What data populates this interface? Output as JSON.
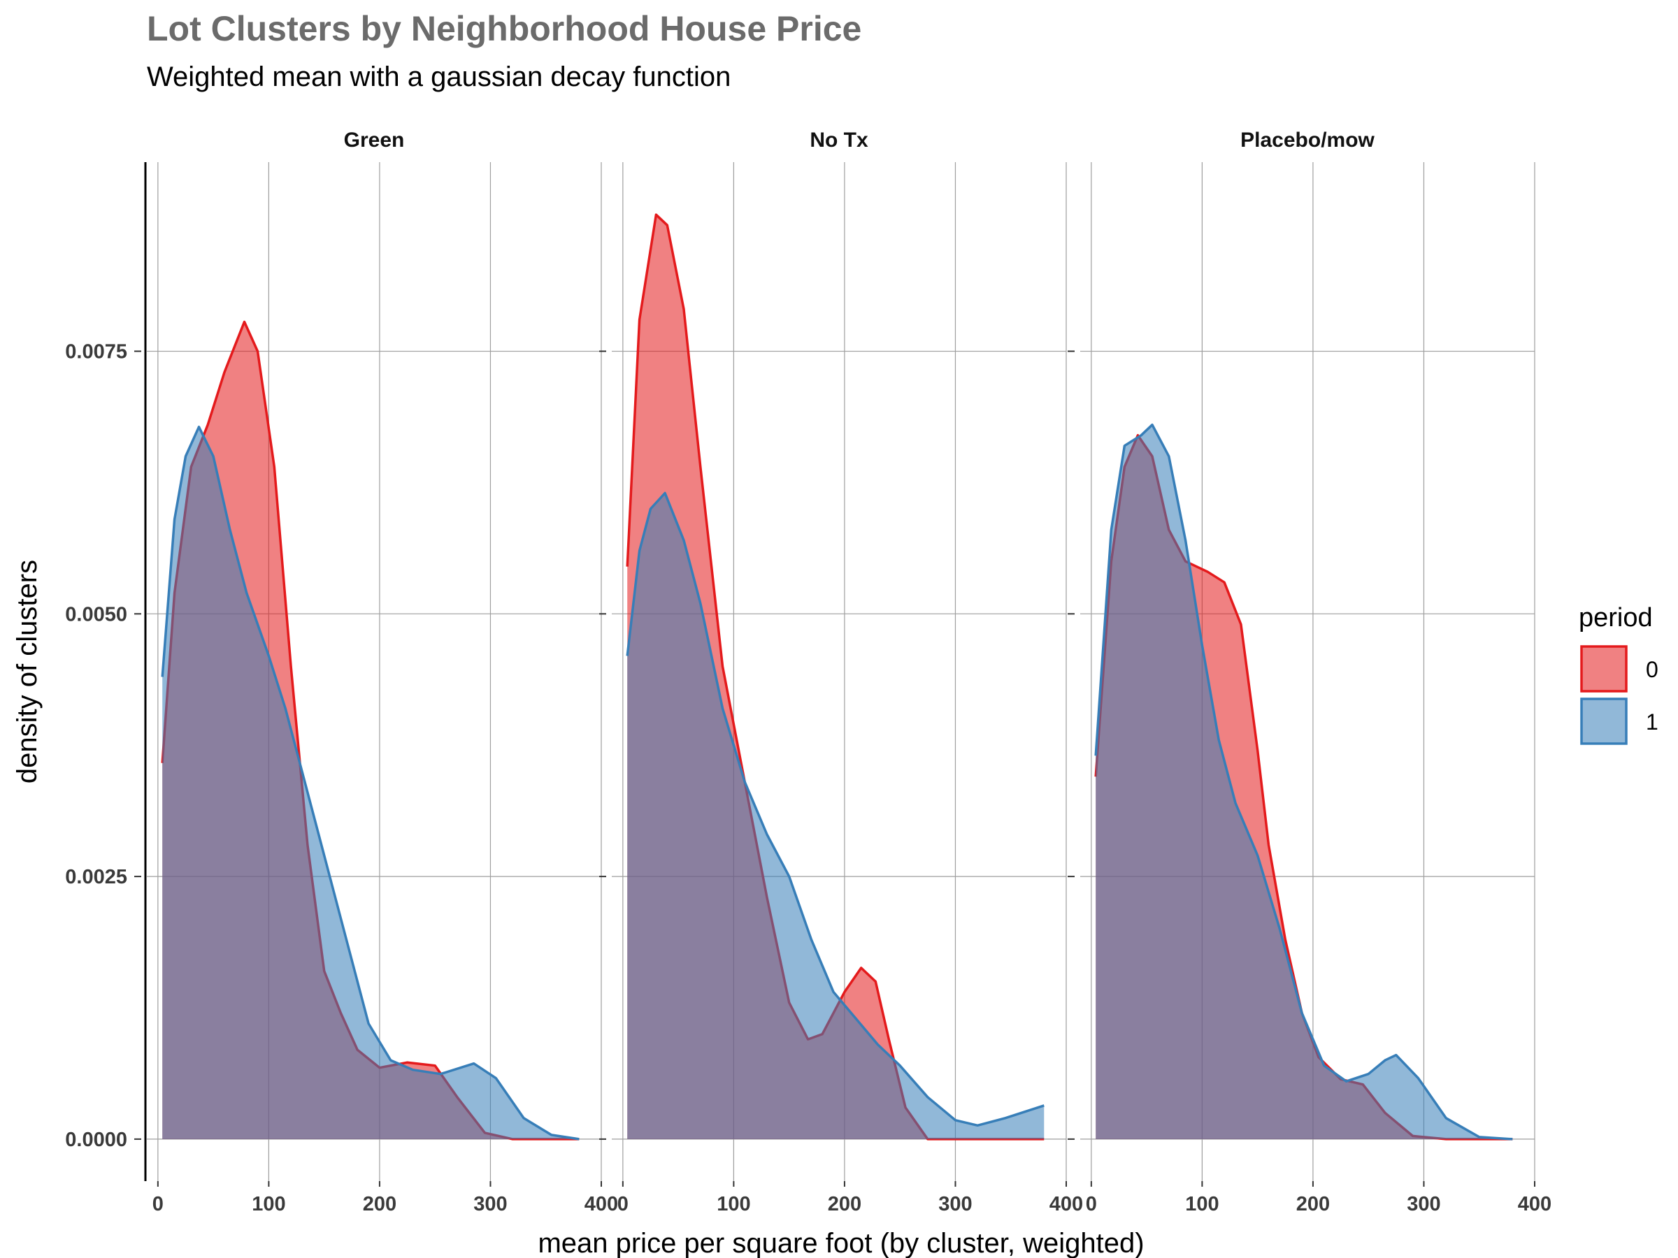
{
  "title": "Lot Clusters by Neighborhood House Price",
  "subtitle": "Weighted mean with a gaussian decay function",
  "colors": {
    "period_0": "#E41A1C",
    "period_1": "#377EB8"
  },
  "chart_data": {
    "type": "area",
    "title": "Lot Clusters by Neighborhood House Price",
    "subtitle": "Weighted mean with a gaussian decay function",
    "xlabel": "mean price per square foot (by cluster, weighted)",
    "ylabel": "density of clusters",
    "xlim": [
      -10,
      400
    ],
    "ylim": [
      -0.0004,
      0.0093
    ],
    "x_ticks": [
      0,
      100,
      200,
      300,
      400
    ],
    "x_tick_labels": [
      "0",
      "100",
      "200",
      "300",
      "400"
    ],
    "y_ticks": [
      0,
      0.0025,
      0.005,
      0.0075
    ],
    "y_tick_labels": [
      "0.0000",
      "0.0025",
      "0.0050",
      "0.0075"
    ],
    "grid": true,
    "legend": {
      "title": "period",
      "placement": "right",
      "entries": [
        "0",
        "1"
      ]
    },
    "facets": [
      {
        "name": "Green",
        "series": [
          {
            "name": "0",
            "points": [
              [
                4,
                0.00358
              ],
              [
                15,
                0.0052
              ],
              [
                30,
                0.0064
              ],
              [
                45,
                0.0068
              ],
              [
                60,
                0.0073
              ],
              [
                78,
                0.00778
              ],
              [
                90,
                0.0075
              ],
              [
                105,
                0.0064
              ],
              [
                120,
                0.0045
              ],
              [
                135,
                0.0028
              ],
              [
                150,
                0.0016
              ],
              [
                165,
                0.0012
              ],
              [
                180,
                0.00085
              ],
              [
                200,
                0.00068
              ],
              [
                225,
                0.00073
              ],
              [
                250,
                0.0007
              ],
              [
                270,
                0.0004
              ],
              [
                295,
                6e-05
              ],
              [
                320,
                0.0
              ],
              [
                380,
                0.0
              ]
            ]
          },
          {
            "name": "1",
            "points": [
              [
                4,
                0.0044
              ],
              [
                15,
                0.0059
              ],
              [
                25,
                0.0065
              ],
              [
                37,
                0.00678
              ],
              [
                50,
                0.0065
              ],
              [
                65,
                0.0058
              ],
              [
                80,
                0.0052
              ],
              [
                100,
                0.0046
              ],
              [
                115,
                0.0041
              ],
              [
                130,
                0.0035
              ],
              [
                150,
                0.0027
              ],
              [
                170,
                0.0019
              ],
              [
                190,
                0.0011
              ],
              [
                210,
                0.00075
              ],
              [
                230,
                0.00066
              ],
              [
                255,
                0.00062
              ],
              [
                285,
                0.00072
              ],
              [
                305,
                0.00058
              ],
              [
                330,
                0.0002
              ],
              [
                355,
                4e-05
              ],
              [
                380,
                0.0
              ]
            ]
          }
        ]
      },
      {
        "name": "No Tx",
        "series": [
          {
            "name": "0",
            "points": [
              [
                4,
                0.00545
              ],
              [
                15,
                0.0078
              ],
              [
                30,
                0.0088
              ],
              [
                40,
                0.0087
              ],
              [
                55,
                0.0079
              ],
              [
                70,
                0.0064
              ],
              [
                90,
                0.0045
              ],
              [
                110,
                0.0034
              ],
              [
                130,
                0.0023
              ],
              [
                150,
                0.0013
              ],
              [
                167,
                0.00095
              ],
              [
                180,
                0.001
              ],
              [
                200,
                0.0014
              ],
              [
                215,
                0.00163
              ],
              [
                228,
                0.0015
              ],
              [
                240,
                0.00095
              ],
              [
                255,
                0.0003
              ],
              [
                275,
                0.0
              ],
              [
                310,
                0.0
              ],
              [
                380,
                0.0
              ]
            ]
          },
          {
            "name": "1",
            "points": [
              [
                4,
                0.0046
              ],
              [
                15,
                0.0056
              ],
              [
                25,
                0.006
              ],
              [
                38,
                0.00615
              ],
              [
                55,
                0.0057
              ],
              [
                70,
                0.0051
              ],
              [
                90,
                0.0041
              ],
              [
                110,
                0.0034
              ],
              [
                130,
                0.0029
              ],
              [
                150,
                0.0025
              ],
              [
                170,
                0.0019
              ],
              [
                190,
                0.0014
              ],
              [
                210,
                0.00115
              ],
              [
                230,
                0.0009
              ],
              [
                250,
                0.0007
              ],
              [
                275,
                0.0004
              ],
              [
                300,
                0.00018
              ],
              [
                320,
                0.00013
              ],
              [
                345,
                0.0002
              ],
              [
                380,
                0.00032
              ]
            ]
          }
        ]
      },
      {
        "name": "Placebo/mow",
        "series": [
          {
            "name": "0",
            "points": [
              [
                4,
                0.00345
              ],
              [
                18,
                0.0055
              ],
              [
                30,
                0.0064
              ],
              [
                42,
                0.0067
              ],
              [
                55,
                0.0065
              ],
              [
                70,
                0.0058
              ],
              [
                85,
                0.0055
              ],
              [
                105,
                0.0054
              ],
              [
                120,
                0.0053
              ],
              [
                135,
                0.0049
              ],
              [
                150,
                0.0037
              ],
              [
                160,
                0.0028
              ],
              [
                175,
                0.0019
              ],
              [
                190,
                0.0012
              ],
              [
                205,
                0.00078
              ],
              [
                225,
                0.00057
              ],
              [
                245,
                0.00052
              ],
              [
                265,
                0.00025
              ],
              [
                290,
                3e-05
              ],
              [
                320,
                0.0
              ],
              [
                380,
                0.0
              ]
            ]
          },
          {
            "name": "1",
            "points": [
              [
                4,
                0.00365
              ],
              [
                18,
                0.0058
              ],
              [
                30,
                0.0066
              ],
              [
                45,
                0.0067
              ],
              [
                55,
                0.0068
              ],
              [
                70,
                0.0065
              ],
              [
                85,
                0.0057
              ],
              [
                100,
                0.0047
              ],
              [
                115,
                0.0038
              ],
              [
                130,
                0.0032
              ],
              [
                150,
                0.0027
              ],
              [
                170,
                0.002
              ],
              [
                190,
                0.0012
              ],
              [
                210,
                0.0007
              ],
              [
                230,
                0.00055
              ],
              [
                250,
                0.00062
              ],
              [
                265,
                0.00075
              ],
              [
                275,
                0.0008
              ],
              [
                295,
                0.00058
              ],
              [
                320,
                0.0002
              ],
              [
                350,
                2e-05
              ],
              [
                380,
                0.0
              ]
            ]
          }
        ]
      }
    ]
  }
}
